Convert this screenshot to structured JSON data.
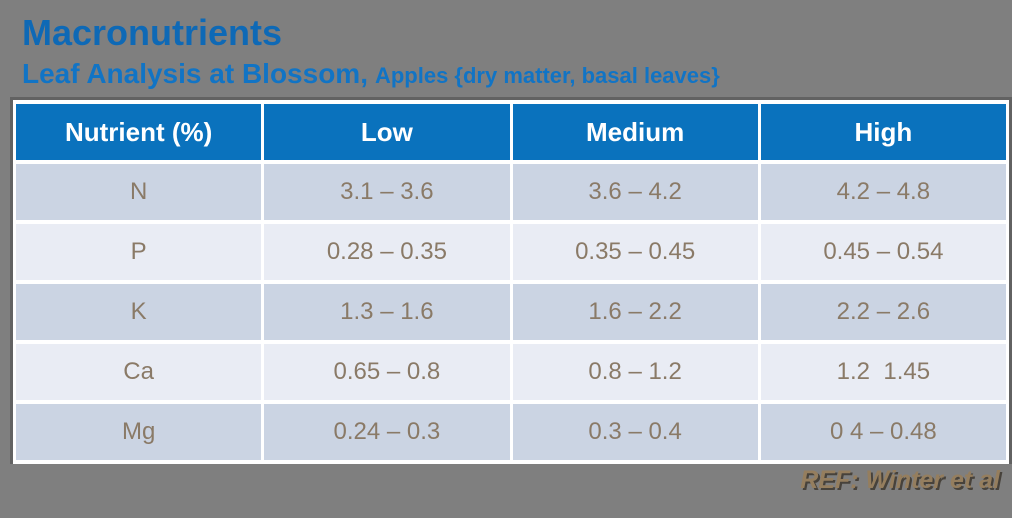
{
  "slide": {
    "title": "Macronutrients",
    "subtitle_main": "Leaf Analysis at Blossom,",
    "subtitle_detail": "Apples {dry matter, basal leaves}",
    "reference": "REF: Winter et al"
  },
  "table": {
    "columns": [
      "Nutrient (%)",
      "Low",
      "Medium",
      "High"
    ],
    "rows": [
      {
        "nutrient": "N",
        "low": "3.1 – 3.6",
        "medium": "3.6 – 4.2",
        "high": "4.2 – 4.8"
      },
      {
        "nutrient": "P",
        "low": "0.28 – 0.35",
        "medium": "0.35 – 0.45",
        "high": "0.45 – 0.54"
      },
      {
        "nutrient": "K",
        "low": "1.3 – 1.6",
        "medium": "1.6 – 2.2",
        "high": "2.2 – 2.6"
      },
      {
        "nutrient": "Ca",
        "low": "0.65 – 0.8",
        "medium": "0.8 – 1.2",
        "high": "1.2  1.45"
      },
      {
        "nutrient": "Mg",
        "low": "0.24 – 0.3",
        "medium": "0.3 – 0.4",
        "high": "0 4 – 0.48"
      }
    ]
  },
  "colors": {
    "background": "#7f7f7f",
    "title_blue": "#0e69b6",
    "subtitle_blue": "#1174c5",
    "header_blue": "#0a72bd",
    "row_dark": "#cbd4e3",
    "row_light": "#e9ecf4",
    "body_text": "#8a7a67",
    "reference_text": "#957e5e"
  }
}
